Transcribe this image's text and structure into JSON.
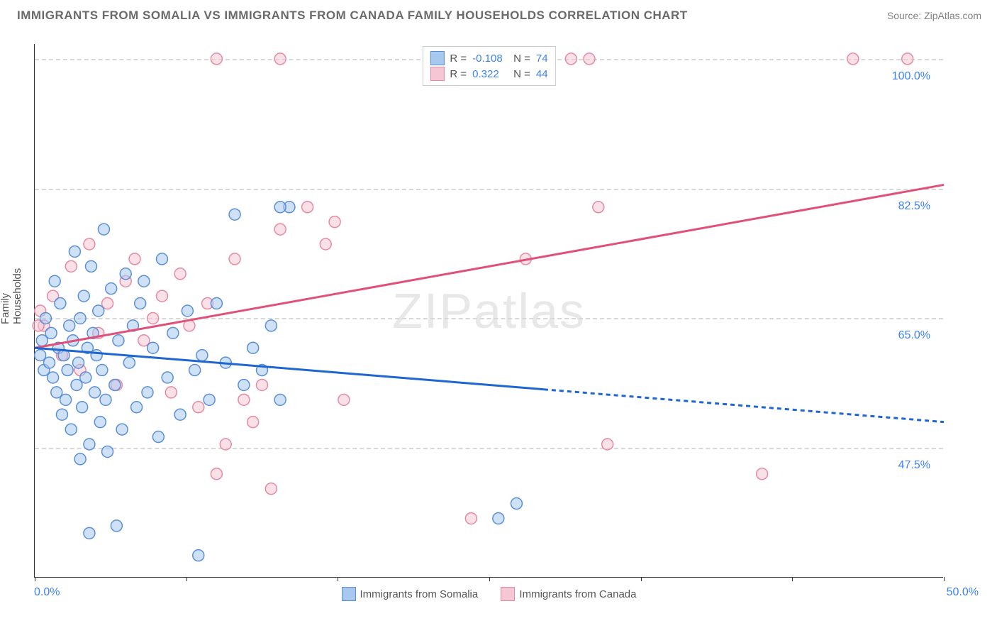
{
  "title": "IMMIGRANTS FROM SOMALIA VS IMMIGRANTS FROM CANADA FAMILY HOUSEHOLDS CORRELATION CHART",
  "source": "Source: ZipAtlas.com",
  "ylabel": "Family Households",
  "watermark": "ZIPatlas",
  "xticks": {
    "min_label": "0.0%",
    "max_label": "50.0%"
  },
  "yticks": [
    "100.0%",
    "82.5%",
    "65.0%",
    "47.5%"
  ],
  "correlation": {
    "series1": {
      "R_label": "R =",
      "R": "-0.108",
      "N_label": "N =",
      "N": "74"
    },
    "series2": {
      "R_label": "R =",
      "R": "0.322",
      "N_label": "N =",
      "N": "44"
    }
  },
  "series": {
    "somalia": {
      "label": "Immigrants from Somalia",
      "fill": "#a8c8f0",
      "stroke": "#5b8fd6",
      "line": "#1e66d0"
    },
    "canada": {
      "label": "Immigrants from Canada",
      "fill": "#f5c6d3",
      "stroke": "#e68aa3",
      "line": "#e15078"
    }
  },
  "chart": {
    "type": "scatter",
    "xlim": [
      0,
      50
    ],
    "ylim": [
      30,
      102
    ],
    "grid_y": [
      100,
      82.5,
      65,
      47.5
    ],
    "grid_color": "#d8d8d8",
    "background": "#ffffff",
    "marker_radius": 8,
    "marker_opacity": 0.55,
    "line_width": 3,
    "regression": {
      "somalia": {
        "y_at_x0": 61,
        "y_at_x50": 51,
        "solid_until_x": 28
      },
      "canada": {
        "y_at_x0": 61,
        "y_at_x50": 83
      }
    },
    "points_somalia": [
      [
        0.3,
        60
      ],
      [
        0.4,
        62
      ],
      [
        0.5,
        58
      ],
      [
        0.6,
        65
      ],
      [
        0.8,
        59
      ],
      [
        0.9,
        63
      ],
      [
        1.0,
        57
      ],
      [
        1.1,
        70
      ],
      [
        1.2,
        55
      ],
      [
        1.3,
        61
      ],
      [
        1.4,
        67
      ],
      [
        1.5,
        52
      ],
      [
        1.6,
        60
      ],
      [
        1.7,
        54
      ],
      [
        1.8,
        58
      ],
      [
        1.9,
        64
      ],
      [
        2.0,
        50
      ],
      [
        2.1,
        62
      ],
      [
        2.2,
        74
      ],
      [
        2.3,
        56
      ],
      [
        2.4,
        59
      ],
      [
        2.5,
        65
      ],
      [
        2.6,
        53
      ],
      [
        2.7,
        68
      ],
      [
        2.8,
        57
      ],
      [
        2.9,
        61
      ],
      [
        3.0,
        48
      ],
      [
        3.1,
        72
      ],
      [
        3.2,
        63
      ],
      [
        3.3,
        55
      ],
      [
        3.4,
        60
      ],
      [
        3.5,
        66
      ],
      [
        3.6,
        51
      ],
      [
        3.7,
        58
      ],
      [
        3.8,
        77
      ],
      [
        3.9,
        54
      ],
      [
        4.0,
        47
      ],
      [
        4.2,
        69
      ],
      [
        4.4,
        56
      ],
      [
        4.6,
        62
      ],
      [
        4.8,
        50
      ],
      [
        5.0,
        71
      ],
      [
        5.2,
        59
      ],
      [
        5.4,
        64
      ],
      [
        5.6,
        53
      ],
      [
        5.8,
        67
      ],
      [
        6.0,
        70
      ],
      [
        6.2,
        55
      ],
      [
        6.5,
        61
      ],
      [
        6.8,
        49
      ],
      [
        7.0,
        73
      ],
      [
        7.3,
        57
      ],
      [
        7.6,
        63
      ],
      [
        8.0,
        52
      ],
      [
        8.4,
        66
      ],
      [
        8.8,
        58
      ],
      [
        9.2,
        60
      ],
      [
        9.6,
        54
      ],
      [
        10.0,
        67
      ],
      [
        10.5,
        59
      ],
      [
        11.0,
        79
      ],
      [
        11.5,
        56
      ],
      [
        12.0,
        61
      ],
      [
        12.5,
        58
      ],
      [
        13.0,
        64
      ],
      [
        13.5,
        54
      ],
      [
        14.0,
        80
      ],
      [
        3.0,
        36
      ],
      [
        4.5,
        37
      ],
      [
        9.0,
        33
      ],
      [
        25.5,
        38
      ],
      [
        26.5,
        40
      ],
      [
        13.5,
        80
      ],
      [
        2.5,
        46
      ]
    ],
    "points_canada": [
      [
        0.5,
        64
      ],
      [
        1.0,
        68
      ],
      [
        1.5,
        60
      ],
      [
        2.0,
        72
      ],
      [
        2.5,
        58
      ],
      [
        3.0,
        75
      ],
      [
        3.5,
        63
      ],
      [
        4.0,
        67
      ],
      [
        4.5,
        56
      ],
      [
        5.0,
        70
      ],
      [
        5.5,
        73
      ],
      [
        6.0,
        62
      ],
      [
        6.5,
        65
      ],
      [
        7.0,
        68
      ],
      [
        7.5,
        55
      ],
      [
        8.0,
        71
      ],
      [
        8.5,
        64
      ],
      [
        9.0,
        53
      ],
      [
        9.5,
        67
      ],
      [
        10.0,
        44
      ],
      [
        10.5,
        48
      ],
      [
        11.0,
        73
      ],
      [
        11.5,
        54
      ],
      [
        12.0,
        51
      ],
      [
        12.5,
        56
      ],
      [
        13.0,
        42
      ],
      [
        13.5,
        77
      ],
      [
        15.0,
        80
      ],
      [
        16.0,
        75
      ],
      [
        16.5,
        78
      ],
      [
        17.0,
        54
      ],
      [
        24.0,
        38
      ],
      [
        27.0,
        73
      ],
      [
        29.5,
        100
      ],
      [
        30.5,
        100
      ],
      [
        31.0,
        80
      ],
      [
        31.5,
        48
      ],
      [
        40.0,
        44
      ],
      [
        45.0,
        100
      ],
      [
        48.0,
        100
      ],
      [
        10.0,
        100
      ],
      [
        13.5,
        100
      ],
      [
        0.3,
        66
      ],
      [
        0.2,
        64
      ]
    ]
  }
}
